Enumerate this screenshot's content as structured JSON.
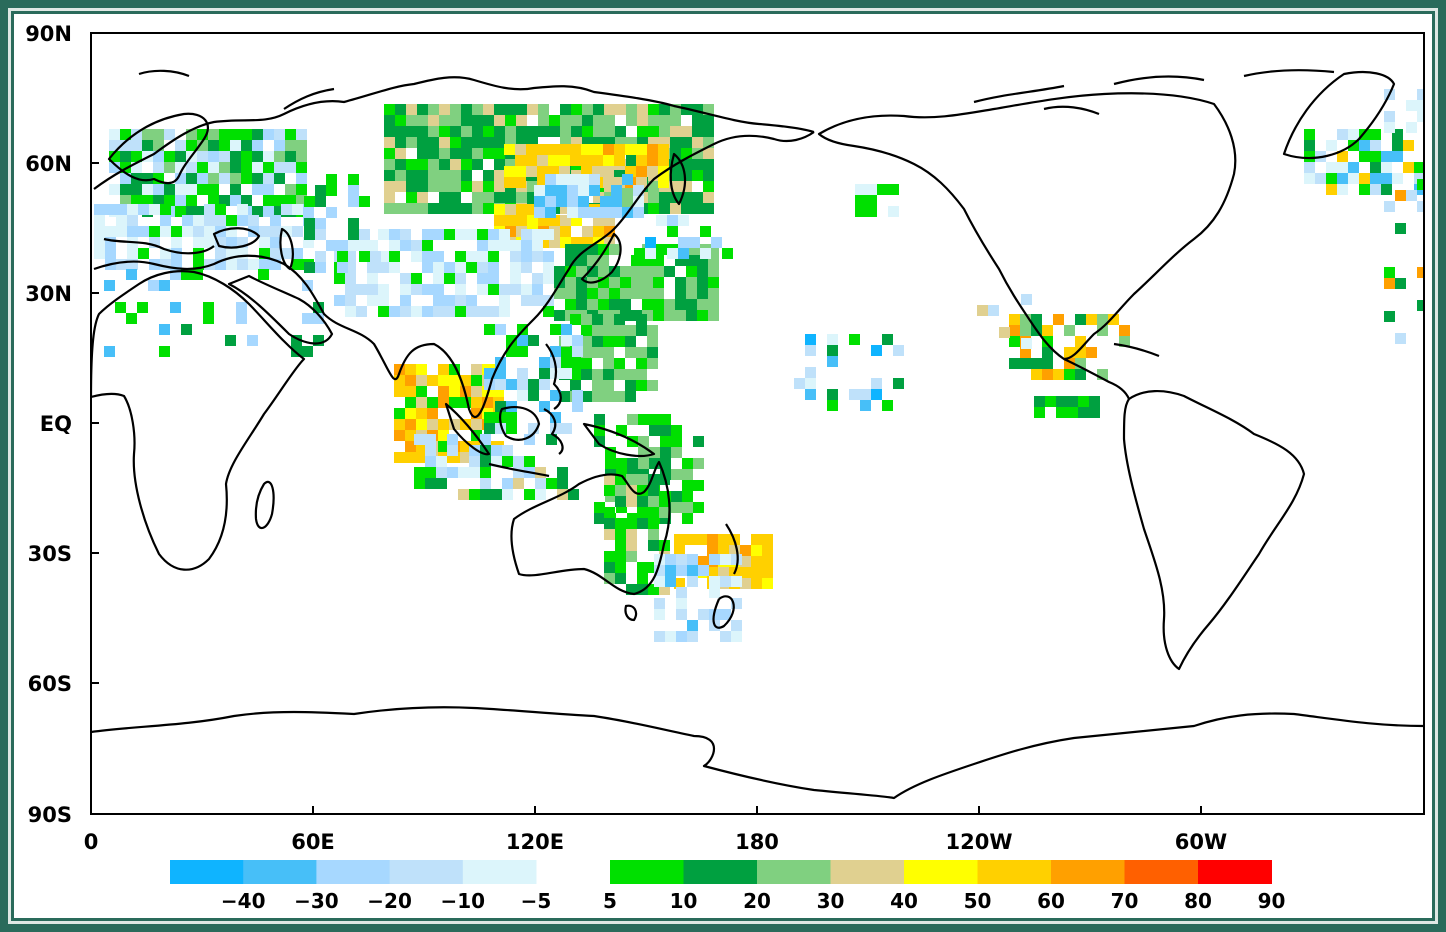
{
  "map": {
    "y_tick_labels": [
      "90N",
      "60N",
      "30N",
      "EQ",
      "30S",
      "60S",
      "90S"
    ],
    "x_tick_labels": [
      "0",
      "60E",
      "120E",
      "180",
      "120W",
      "60W"
    ],
    "colorbar": {
      "negative_bins": [
        {
          "color": "#0fb4ff"
        },
        {
          "color": "#47bff8"
        },
        {
          "color": "#a7d8ff"
        },
        {
          "color": "#bfe1fa"
        },
        {
          "color": "#dcf5fb"
        }
      ],
      "negative_labels": [
        "−40",
        "−30",
        "−20",
        "−10",
        "−5"
      ],
      "positive_bins": [
        {
          "color": "#00e000"
        },
        {
          "color": "#00a040"
        },
        {
          "color": "#80d080"
        },
        {
          "color": "#e0d090"
        },
        {
          "color": "#ffff00"
        },
        {
          "color": "#ffd000"
        },
        {
          "color": "#ffa000"
        },
        {
          "color": "#ff6000"
        },
        {
          "color": "#ff0000"
        }
      ],
      "positive_labels": [
        "5",
        "10",
        "20",
        "30",
        "40",
        "50",
        "60",
        "70",
        "80",
        "90"
      ]
    },
    "colors": {
      "frame": "#2a6b5b",
      "coastline": "#000000"
    }
  }
}
